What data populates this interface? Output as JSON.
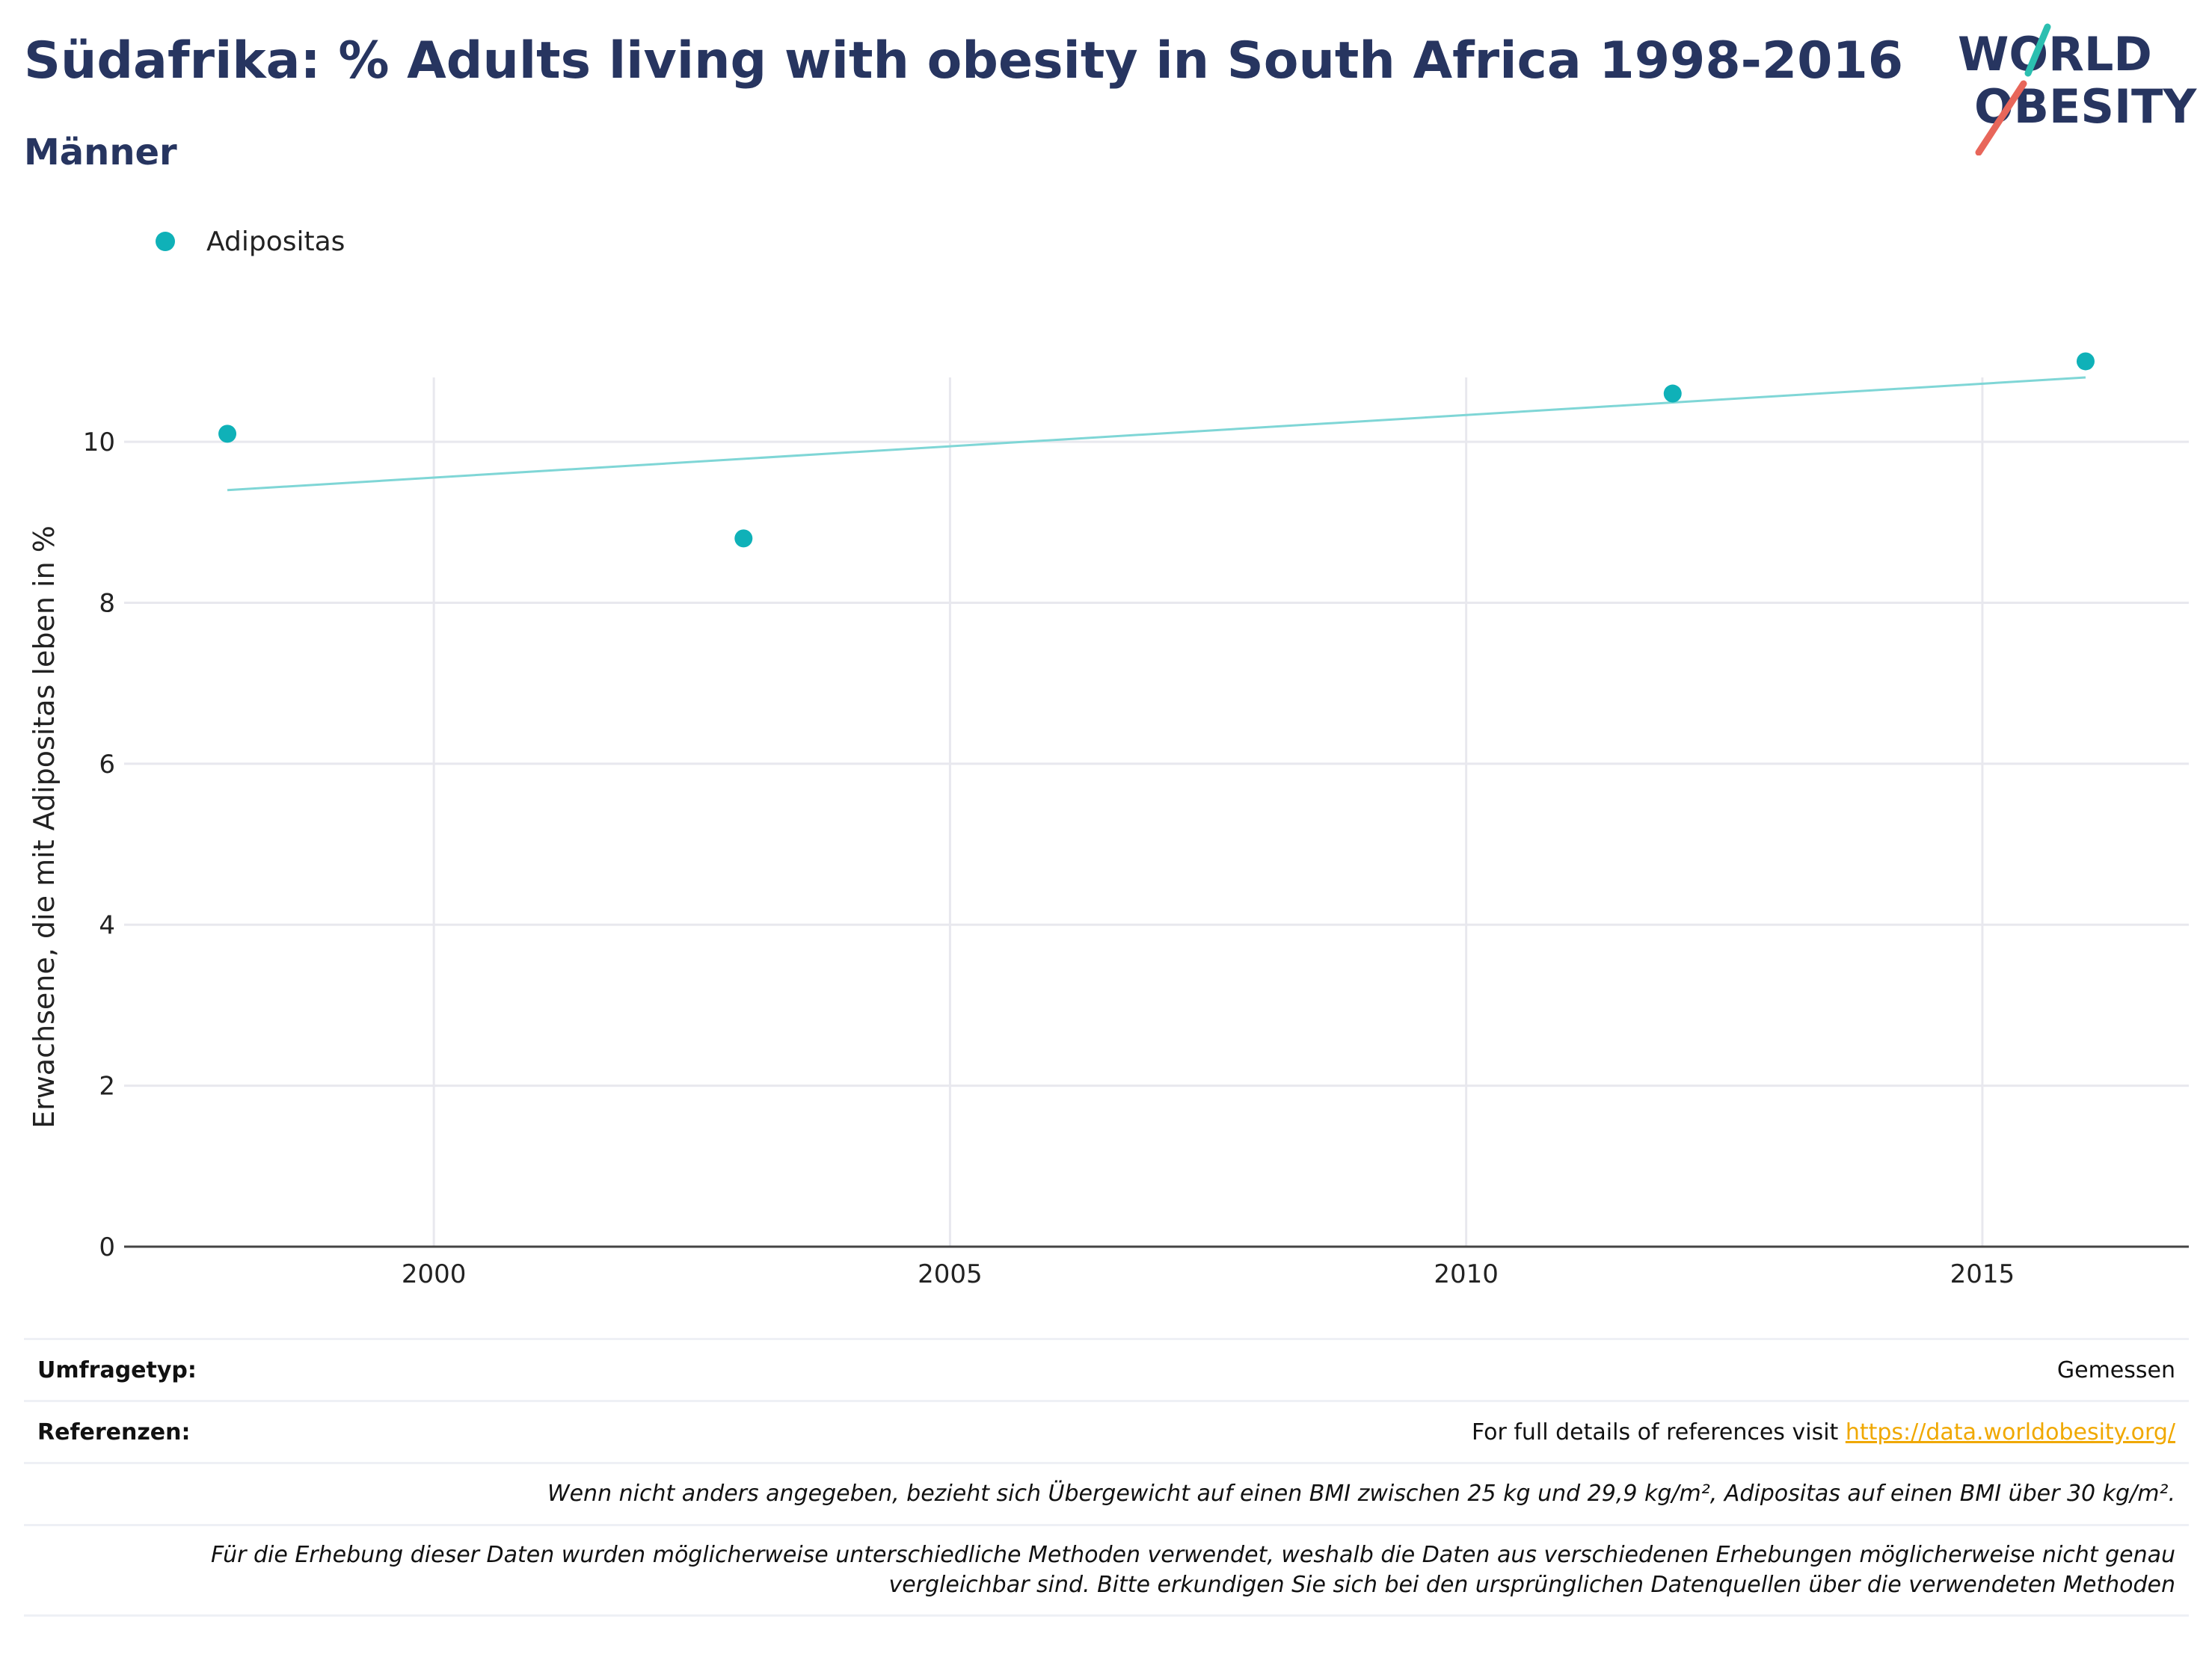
{
  "header": {
    "title": "Südafrika: % Adults living with obesity in South Africa 1998-2016",
    "subtitle": "Männer"
  },
  "logo": {
    "line1": "WORLD",
    "line2": "OBESITY",
    "text_color": "#273560",
    "teal": "#2bbfb0",
    "red": "#e8665a"
  },
  "legend": {
    "label": "Adipositas",
    "color": "#0fb1b8"
  },
  "chart_data": {
    "type": "scatter",
    "title": "Südafrika: % Adults living with obesity in South Africa 1998-2016",
    "ylabel": "Erwachsene, die mit Adipositas leben in %",
    "xlim": [
      1997,
      2017
    ],
    "ylim": [
      0,
      10.8
    ],
    "yticks": [
      0,
      2,
      4,
      6,
      8,
      10
    ],
    "xticks": [
      2000,
      2005,
      2010,
      2015
    ],
    "grid": true,
    "series": [
      {
        "name": "Adipositas",
        "color": "#0fb1b8",
        "x": [
          1998,
          2003,
          2012,
          2016
        ],
        "y": [
          10.1,
          8.8,
          10.6,
          11.0
        ]
      }
    ],
    "trendline": {
      "color": "#7fd6d6",
      "x": [
        1998,
        2016
      ],
      "y": [
        9.4,
        10.8
      ]
    }
  },
  "footer": {
    "survey_type_label": "Umfragetyp:",
    "survey_type_value": "Gemessen",
    "references_label": "Referenzen:",
    "references_text": "For full details of references visit ",
    "references_link": "https://data.worldobesity.org/",
    "note1": "Wenn nicht anders angegeben, bezieht sich Übergewicht auf einen BMI zwischen 25 kg und 29,9 kg/m², Adipositas auf einen BMI über 30 kg/m².",
    "note2_line1": "Für die Erhebung dieser Daten wurden möglicherweise unterschiedliche Methoden verwendet, weshalb die Daten aus verschiedenen Erhebungen möglicherweise nicht genau",
    "note2_line2": "vergleichbar sind. Bitte erkundigen Sie sich bei den ursprünglichen Datenquellen über die verwendeten Methoden"
  }
}
